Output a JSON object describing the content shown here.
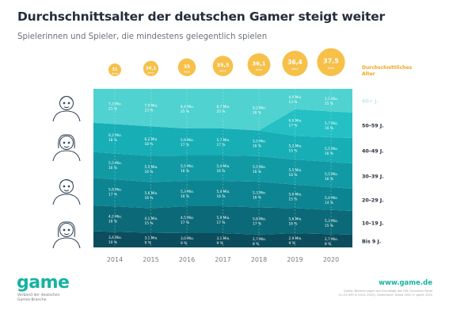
{
  "title": "Durchschnittsalter der deutschen Gamer steigt weiter",
  "subtitle": "Spielerinnen und Spieler, die mindestens gelegentlich spielen",
  "colors": {
    "age_circle": "#f6c049",
    "age_text": "#e9a71c",
    "axis_text": "#777b82",
    "icon_stroke": "#3b4a5c",
    "bands": [
      "#0b4d5c",
      "#0c6a78",
      "#0d8491",
      "#129aa4",
      "#17aeb6",
      "#24c0c4",
      "#4fd2d0",
      "#98dfdc"
    ]
  },
  "icons": [
    "old-man-icon",
    "woman-icon",
    "man-icon",
    "girl-icon"
  ],
  "logo": {
    "word": "game",
    "line1": "Verband der deutschen",
    "line2": "Games-Branche"
  },
  "website": "www.game.de",
  "source": {
    "line1": "Quelle: Berechnungen auf Grundlage des GfK Consumer Panel",
    "line2": "(n=25.000 in 2014–2020), Zahlenwert: Stand 2020 © game 2020",
    "line3": ""
  },
  "chart_data": {
    "type": "area",
    "title": "Durchschnittsalter der deutschen Gamer steigt weiter",
    "subtitle": "Spielerinnen und Spieler, die mindestens gelegentlich spielen",
    "x": [
      "2014",
      "2015",
      "2016",
      "2017",
      "2018",
      "2019",
      "2020"
    ],
    "stacked": true,
    "unit": "Prozent",
    "legend_title": "Durchschnittliches Alter",
    "average_age": {
      "values": [
        "31",
        "34,1",
        "35",
        "35,5",
        "36,1",
        "36,4",
        "37,5"
      ],
      "unit": "Jahre"
    },
    "series": [
      {
        "name": "Bis 9 J.",
        "mio": [
          "3,4",
          "3,1",
          "3,0",
          "3,1",
          "2,7",
          "2,9",
          "2,7"
        ],
        "pct": [
          "10",
          "9",
          "9",
          "9",
          "8",
          "9",
          "8"
        ]
      },
      {
        "name": "10–19 J.",
        "mio": [
          "4,2",
          "4,1",
          "4,5",
          "5,9",
          "5,8",
          "5,6",
          "5,3"
        ],
        "pct": [
          "16",
          "15",
          "17",
          "17",
          "17",
          "16",
          "15"
        ]
      },
      {
        "name": "20–29 J.",
        "mio": [
          "5,8",
          "5,6",
          "5,3",
          "5,4",
          "5,3",
          "5,0",
          "5,0"
        ],
        "pct": [
          "17",
          "16",
          "16",
          "16",
          "16",
          "15",
          "14"
        ]
      },
      {
        "name": "30–39 J.",
        "mio": [
          "5,5",
          "5,5",
          "5,5",
          "5,4",
          "5,5",
          "5,5",
          "5,5"
        ],
        "pct": [
          "16",
          "16",
          "16",
          "16",
          "16",
          "16",
          "16"
        ]
      },
      {
        "name": "40–49 J.",
        "mio": [
          "6,2",
          "6,2",
          "5,9",
          "5,7",
          "5,5",
          "5,2",
          "5,5"
        ],
        "pct": [
          "18",
          "18",
          "17",
          "17",
          "16",
          "15",
          "16"
        ]
      },
      {
        "name": "50–59 J.",
        "mio": [
          "",
          "",
          "",
          "",
          "",
          "6,0",
          "5,7"
        ],
        "pct": [
          "",
          "",
          "",
          "",
          "",
          "17",
          "16"
        ]
      },
      {
        "name": "60+ J.",
        "mio": [
          "7,3",
          "7,9",
          "8,4",
          "8,7",
          "9,2",
          "4,4",
          "5,1"
        ],
        "pct": [
          "21",
          "23",
          "25",
          "25",
          "26",
          "13",
          "15"
        ]
      }
    ],
    "ylim": [
      0,
      100
    ],
    "grid": false,
    "legend": "right"
  }
}
